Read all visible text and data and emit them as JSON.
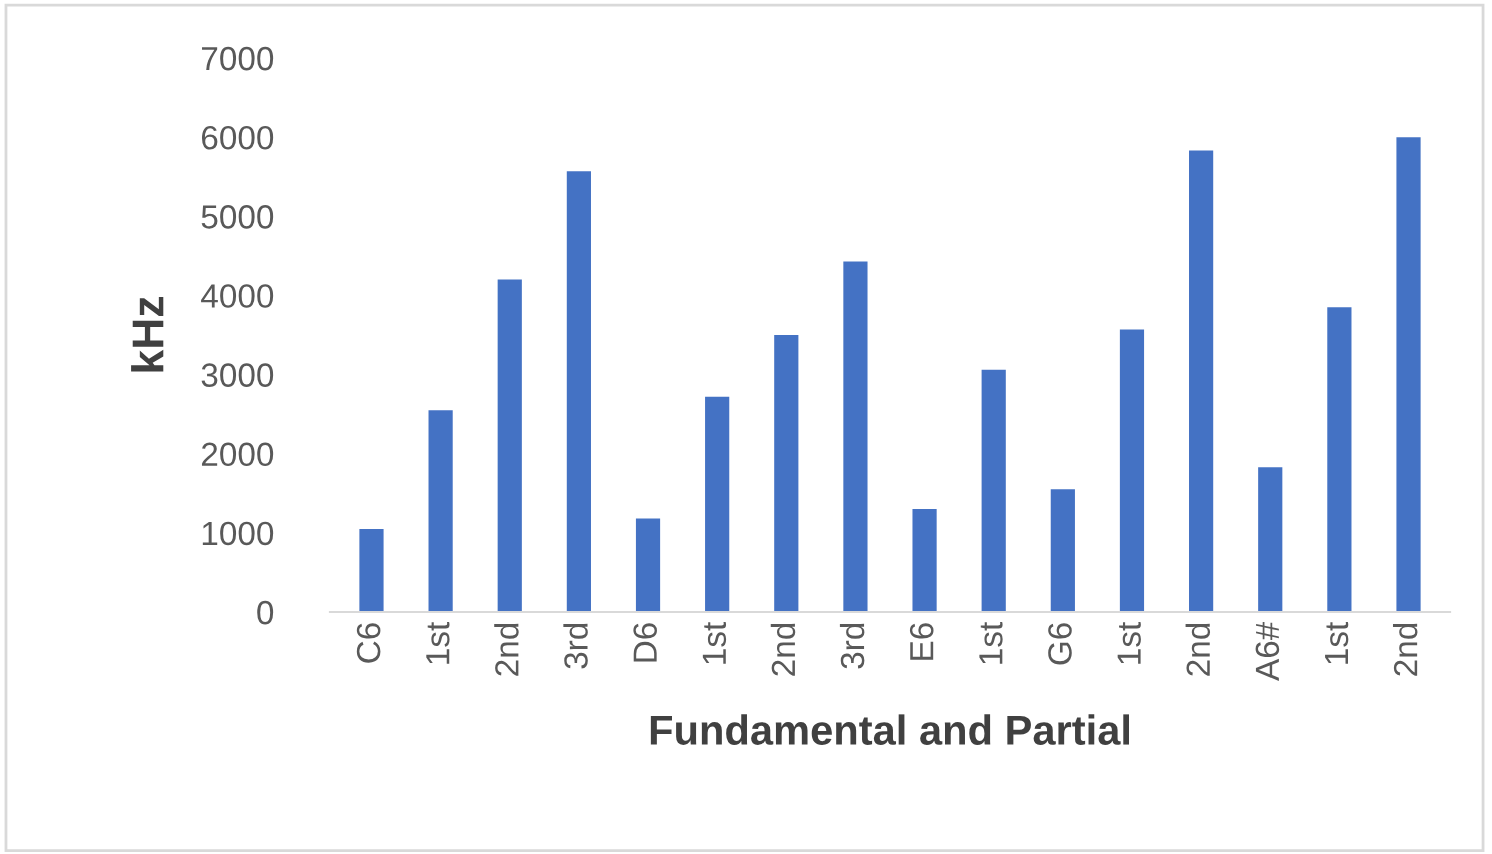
{
  "chart_data": {
    "type": "bar",
    "xlabel": "Fundamental and Partial",
    "ylabel": "kHz",
    "categories": [
      "C6",
      "1st",
      "2nd",
      "3rd",
      "D6",
      "1st",
      "2nd",
      "3rd",
      "E6",
      "1st",
      "G6",
      "1st",
      "2nd",
      "A6#",
      "1st",
      "2nd"
    ],
    "values": [
      1050,
      2550,
      4200,
      5570,
      1180,
      2720,
      3500,
      4430,
      1300,
      3060,
      1550,
      3570,
      5830,
      1830,
      3850,
      6000
    ],
    "color": "#4472c4",
    "ylim": [
      0,
      7000
    ],
    "yticks": [
      0,
      1000,
      2000,
      3000,
      4000,
      5000,
      6000,
      7000
    ],
    "grid": false,
    "legend": false
  }
}
